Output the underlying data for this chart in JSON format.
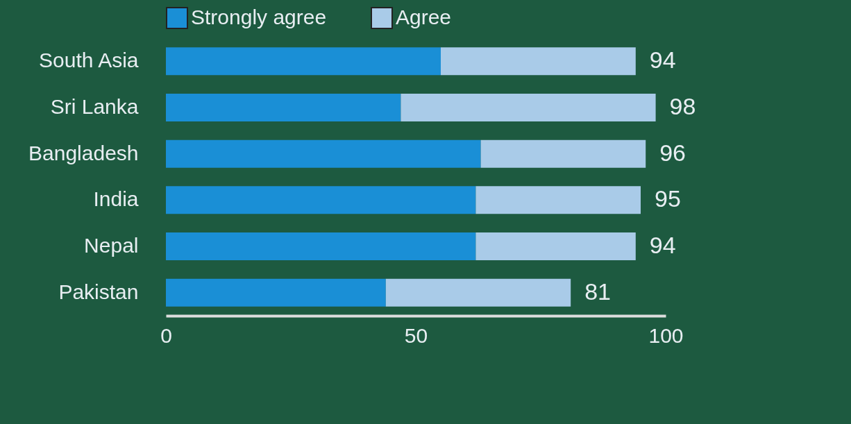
{
  "chart_data": {
    "type": "bar",
    "orientation": "horizontal",
    "stacked": true,
    "categories": [
      "South Asia",
      "Sri Lanka",
      "Bangladesh",
      "India",
      "Nepal",
      "Pakistan"
    ],
    "series": [
      {
        "name": "Strongly agree",
        "color": "#1a8fd6",
        "values": [
          55,
          47,
          63,
          62,
          62,
          44
        ]
      },
      {
        "name": "Agree",
        "color": "#a9cbe8",
        "values": [
          39,
          51,
          33,
          33,
          32,
          37
        ]
      }
    ],
    "totals": [
      "94",
      "98",
      "96",
      "95",
      "94",
      "81"
    ],
    "xlim": [
      0,
      100
    ],
    "xticks": [
      0,
      50,
      100
    ],
    "grid": false,
    "legend": "top"
  }
}
